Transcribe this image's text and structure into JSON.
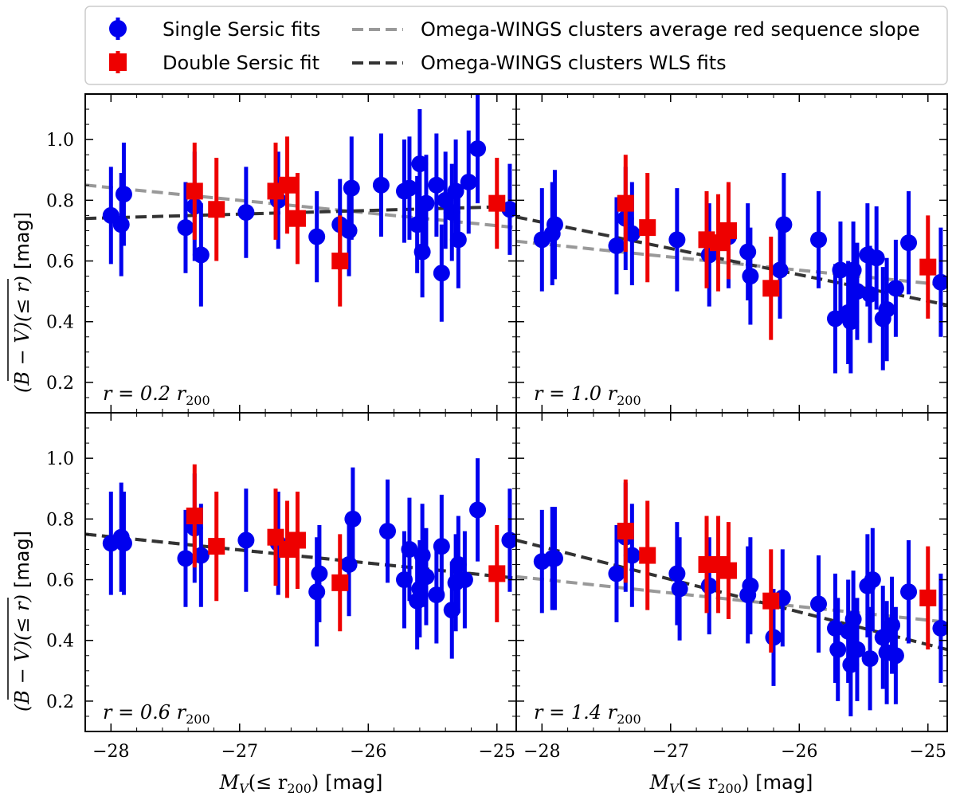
{
  "chart_data": {
    "type": "scatter",
    "legend": {
      "placement": "top",
      "entries": [
        {
          "key": "single",
          "label": "Single Sersic fits",
          "color": "#0000ee",
          "marker": "circle"
        },
        {
          "key": "double",
          "label": "Double Sersic fit",
          "color": "#ee0000",
          "marker": "square"
        },
        {
          "key": "avgslope",
          "label": "Omega-WINGS clusters average red sequence slope",
          "color": "#999999",
          "marker": "dashed"
        },
        {
          "key": "wls",
          "label": "Omega-WINGS clusters WLS fits",
          "color": "#333333",
          "marker": "dashed"
        }
      ]
    },
    "xlim": [
      -28.2,
      -24.85
    ],
    "ylim": [
      0.1,
      1.15
    ],
    "x_ticks": [
      -28,
      -27,
      -26,
      -25
    ],
    "y_ticks": [
      0.2,
      0.4,
      0.6,
      0.8,
      1.0
    ],
    "x_tick_labels": [
      "−28",
      "−27",
      "−26",
      "−25"
    ],
    "y_tick_labels": [
      "0.2",
      "0.4",
      "0.6",
      "0.8",
      "1.0"
    ],
    "xlabel_main": "M",
    "xlabel_sub": "V",
    "xlabel_paren": "(≤ r",
    "xlabel_paren_sub": "200",
    "xlabel_close": ")",
    "xlabel_unit": "[mag]",
    "ylabel_main": "(B − V)(≤ r)",
    "ylabel_unit": "[mag]",
    "panels": [
      {
        "label": "r = 0.2 r",
        "label_sub": "200",
        "avg_line": [
          [
            -28.2,
            0.85
          ],
          [
            -24.85,
            0.71
          ]
        ],
        "wls_line": [
          [
            -28.2,
            0.74
          ],
          [
            -24.85,
            0.78
          ]
        ],
        "single": [
          {
            "x": -28.0,
            "y": 0.75,
            "err": 0.16
          },
          {
            "x": -27.92,
            "y": 0.72,
            "err": 0.17
          },
          {
            "x": -27.9,
            "y": 0.82,
            "err": 0.17
          },
          {
            "x": -27.42,
            "y": 0.71,
            "err": 0.15
          },
          {
            "x": -27.35,
            "y": 0.78,
            "err": 0.18
          },
          {
            "x": -27.3,
            "y": 0.62,
            "err": 0.17
          },
          {
            "x": -26.95,
            "y": 0.76,
            "err": 0.15
          },
          {
            "x": -26.7,
            "y": 0.8,
            "err": 0.16
          },
          {
            "x": -26.4,
            "y": 0.68,
            "err": 0.15
          },
          {
            "x": -26.22,
            "y": 0.72,
            "err": 0.15
          },
          {
            "x": -26.15,
            "y": 0.7,
            "err": 0.15
          },
          {
            "x": -26.13,
            "y": 0.84,
            "err": 0.17
          },
          {
            "x": -25.9,
            "y": 0.85,
            "err": 0.17
          },
          {
            "x": -25.72,
            "y": 0.83,
            "err": 0.17
          },
          {
            "x": -25.68,
            "y": 0.84,
            "err": 0.17
          },
          {
            "x": -25.62,
            "y": 0.72,
            "err": 0.16
          },
          {
            "x": -25.6,
            "y": 0.92,
            "err": 0.18
          },
          {
            "x": -25.58,
            "y": 0.63,
            "err": 0.15
          },
          {
            "x": -25.55,
            "y": 0.79,
            "err": 0.16
          },
          {
            "x": -25.47,
            "y": 0.85,
            "err": 0.17
          },
          {
            "x": -25.43,
            "y": 0.56,
            "err": 0.16
          },
          {
            "x": -25.4,
            "y": 0.8,
            "err": 0.16
          },
          {
            "x": -25.35,
            "y": 0.76,
            "err": 0.16
          },
          {
            "x": -25.3,
            "y": 0.67,
            "err": 0.16
          },
          {
            "x": -25.32,
            "y": 0.83,
            "err": 0.17
          },
          {
            "x": -25.22,
            "y": 0.86,
            "err": 0.17
          },
          {
            "x": -25.15,
            "y": 0.97,
            "err": 0.18
          },
          {
            "x": -24.9,
            "y": 0.77,
            "err": 0.15
          }
        ],
        "double": [
          {
            "x": -27.35,
            "y": 0.83,
            "err": 0.16
          },
          {
            "x": -27.18,
            "y": 0.77,
            "err": 0.17
          },
          {
            "x": -26.72,
            "y": 0.83,
            "err": 0.16
          },
          {
            "x": -26.63,
            "y": 0.85,
            "err": 0.16
          },
          {
            "x": -26.55,
            "y": 0.74,
            "err": 0.15
          },
          {
            "x": -26.22,
            "y": 0.6,
            "err": 0.15
          },
          {
            "x": -25.0,
            "y": 0.79,
            "err": 0.15
          }
        ]
      },
      {
        "label": "r = 1.0 r",
        "label_sub": "200",
        "avg_line": [
          [
            -28.2,
            0.665
          ],
          [
            -24.85,
            0.52
          ]
        ],
        "wls_line": [
          [
            -28.2,
            0.745
          ],
          [
            -24.85,
            0.455
          ]
        ],
        "single": [
          {
            "x": -28.0,
            "y": 0.67,
            "err": 0.17
          },
          {
            "x": -27.92,
            "y": 0.69,
            "err": 0.17
          },
          {
            "x": -27.9,
            "y": 0.72,
            "err": 0.18
          },
          {
            "x": -27.42,
            "y": 0.65,
            "err": 0.16
          },
          {
            "x": -27.35,
            "y": 0.74,
            "err": 0.17
          },
          {
            "x": -27.3,
            "y": 0.69,
            "err": 0.17
          },
          {
            "x": -26.95,
            "y": 0.67,
            "err": 0.17
          },
          {
            "x": -26.7,
            "y": 0.62,
            "err": 0.17
          },
          {
            "x": -26.55,
            "y": 0.68,
            "err": 0.17
          },
          {
            "x": -26.4,
            "y": 0.63,
            "err": 0.16
          },
          {
            "x": -26.38,
            "y": 0.55,
            "err": 0.16
          },
          {
            "x": -26.15,
            "y": 0.57,
            "err": 0.16
          },
          {
            "x": -26.12,
            "y": 0.72,
            "err": 0.17
          },
          {
            "x": -25.85,
            "y": 0.67,
            "err": 0.16
          },
          {
            "x": -25.72,
            "y": 0.41,
            "err": 0.18
          },
          {
            "x": -25.68,
            "y": 0.57,
            "err": 0.16
          },
          {
            "x": -25.62,
            "y": 0.43,
            "err": 0.17
          },
          {
            "x": -25.6,
            "y": 0.4,
            "err": 0.17
          },
          {
            "x": -25.58,
            "y": 0.57,
            "err": 0.16
          },
          {
            "x": -25.55,
            "y": 0.5,
            "err": 0.16
          },
          {
            "x": -25.47,
            "y": 0.62,
            "err": 0.17
          },
          {
            "x": -25.45,
            "y": 0.49,
            "err": 0.16
          },
          {
            "x": -25.4,
            "y": 0.61,
            "err": 0.17
          },
          {
            "x": -25.35,
            "y": 0.41,
            "err": 0.17
          },
          {
            "x": -25.32,
            "y": 0.44,
            "err": 0.17
          },
          {
            "x": -25.25,
            "y": 0.51,
            "err": 0.16
          },
          {
            "x": -25.15,
            "y": 0.66,
            "err": 0.17
          },
          {
            "x": -24.9,
            "y": 0.53,
            "err": 0.18
          }
        ],
        "double": [
          {
            "x": -27.35,
            "y": 0.79,
            "err": 0.16
          },
          {
            "x": -27.18,
            "y": 0.71,
            "err": 0.18
          },
          {
            "x": -26.72,
            "y": 0.67,
            "err": 0.16
          },
          {
            "x": -26.63,
            "y": 0.66,
            "err": 0.16
          },
          {
            "x": -26.55,
            "y": 0.7,
            "err": 0.16
          },
          {
            "x": -26.22,
            "y": 0.51,
            "err": 0.17
          },
          {
            "x": -25.0,
            "y": 0.58,
            "err": 0.17
          }
        ]
      },
      {
        "label": "r = 0.6 r",
        "label_sub": "200",
        "avg_line": [
          [
            -28.2,
            0.75
          ],
          [
            -24.85,
            0.605
          ]
        ],
        "wls_line": [
          [
            -28.2,
            0.75
          ],
          [
            -24.85,
            0.605
          ]
        ],
        "single": [
          {
            "x": -28.0,
            "y": 0.72,
            "err": 0.17
          },
          {
            "x": -27.92,
            "y": 0.74,
            "err": 0.18
          },
          {
            "x": -27.9,
            "y": 0.72,
            "err": 0.17
          },
          {
            "x": -27.42,
            "y": 0.67,
            "err": 0.16
          },
          {
            "x": -27.35,
            "y": 0.77,
            "err": 0.18
          },
          {
            "x": -27.3,
            "y": 0.68,
            "err": 0.17
          },
          {
            "x": -26.95,
            "y": 0.73,
            "err": 0.17
          },
          {
            "x": -26.7,
            "y": 0.72,
            "err": 0.17
          },
          {
            "x": -26.4,
            "y": 0.56,
            "err": 0.18
          },
          {
            "x": -26.38,
            "y": 0.62,
            "err": 0.16
          },
          {
            "x": -26.15,
            "y": 0.65,
            "err": 0.17
          },
          {
            "x": -26.12,
            "y": 0.8,
            "err": 0.17
          },
          {
            "x": -25.85,
            "y": 0.76,
            "err": 0.17
          },
          {
            "x": -25.72,
            "y": 0.6,
            "err": 0.16
          },
          {
            "x": -25.68,
            "y": 0.7,
            "err": 0.17
          },
          {
            "x": -25.62,
            "y": 0.53,
            "err": 0.16
          },
          {
            "x": -25.6,
            "y": 0.57,
            "err": 0.16
          },
          {
            "x": -25.58,
            "y": 0.68,
            "err": 0.17
          },
          {
            "x": -25.55,
            "y": 0.61,
            "err": 0.16
          },
          {
            "x": -25.47,
            "y": 0.55,
            "err": 0.16
          },
          {
            "x": -25.43,
            "y": 0.71,
            "err": 0.17
          },
          {
            "x": -25.35,
            "y": 0.5,
            "err": 0.16
          },
          {
            "x": -25.32,
            "y": 0.59,
            "err": 0.16
          },
          {
            "x": -25.3,
            "y": 0.65,
            "err": 0.16
          },
          {
            "x": -25.25,
            "y": 0.6,
            "err": 0.16
          },
          {
            "x": -25.15,
            "y": 0.83,
            "err": 0.17
          },
          {
            "x": -24.9,
            "y": 0.73,
            "err": 0.17
          }
        ],
        "double": [
          {
            "x": -27.35,
            "y": 0.81,
            "err": 0.17
          },
          {
            "x": -27.18,
            "y": 0.71,
            "err": 0.18
          },
          {
            "x": -26.72,
            "y": 0.74,
            "err": 0.16
          },
          {
            "x": -26.63,
            "y": 0.7,
            "err": 0.16
          },
          {
            "x": -26.55,
            "y": 0.73,
            "err": 0.16
          },
          {
            "x": -26.22,
            "y": 0.59,
            "err": 0.16
          },
          {
            "x": -25.0,
            "y": 0.62,
            "err": 0.16
          }
        ]
      },
      {
        "label": "r = 1.4 r",
        "label_sub": "200",
        "avg_line": [
          [
            -28.2,
            0.61
          ],
          [
            -24.85,
            0.46
          ]
        ],
        "wls_line": [
          [
            -28.2,
            0.73
          ],
          [
            -24.85,
            0.37
          ]
        ],
        "single": [
          {
            "x": -28.0,
            "y": 0.66,
            "err": 0.17
          },
          {
            "x": -27.92,
            "y": 0.67,
            "err": 0.17
          },
          {
            "x": -27.9,
            "y": 0.67,
            "err": 0.17
          },
          {
            "x": -27.42,
            "y": 0.62,
            "err": 0.16
          },
          {
            "x": -27.35,
            "y": 0.74,
            "err": 0.18
          },
          {
            "x": -27.3,
            "y": 0.68,
            "err": 0.17
          },
          {
            "x": -26.95,
            "y": 0.62,
            "err": 0.17
          },
          {
            "x": -26.93,
            "y": 0.57,
            "err": 0.17
          },
          {
            "x": -26.7,
            "y": 0.58,
            "err": 0.16
          },
          {
            "x": -26.4,
            "y": 0.55,
            "err": 0.16
          },
          {
            "x": -26.38,
            "y": 0.58,
            "err": 0.16
          },
          {
            "x": -26.2,
            "y": 0.41,
            "err": 0.16
          },
          {
            "x": -26.13,
            "y": 0.54,
            "err": 0.16
          },
          {
            "x": -25.85,
            "y": 0.52,
            "err": 0.16
          },
          {
            "x": -25.72,
            "y": 0.44,
            "err": 0.18
          },
          {
            "x": -25.7,
            "y": 0.37,
            "err": 0.17
          },
          {
            "x": -25.62,
            "y": 0.43,
            "err": 0.17
          },
          {
            "x": -25.6,
            "y": 0.32,
            "err": 0.17
          },
          {
            "x": -25.58,
            "y": 0.47,
            "err": 0.16
          },
          {
            "x": -25.55,
            "y": 0.37,
            "err": 0.17
          },
          {
            "x": -25.47,
            "y": 0.58,
            "err": 0.17
          },
          {
            "x": -25.45,
            "y": 0.34,
            "err": 0.17
          },
          {
            "x": -25.43,
            "y": 0.6,
            "err": 0.17
          },
          {
            "x": -25.35,
            "y": 0.41,
            "err": 0.17
          },
          {
            "x": -25.32,
            "y": 0.36,
            "err": 0.17
          },
          {
            "x": -25.28,
            "y": 0.45,
            "err": 0.16
          },
          {
            "x": -25.25,
            "y": 0.35,
            "err": 0.16
          },
          {
            "x": -25.15,
            "y": 0.56,
            "err": 0.17
          },
          {
            "x": -24.9,
            "y": 0.44,
            "err": 0.18
          }
        ],
        "double": [
          {
            "x": -27.35,
            "y": 0.76,
            "err": 0.17
          },
          {
            "x": -27.18,
            "y": 0.68,
            "err": 0.18
          },
          {
            "x": -26.72,
            "y": 0.65,
            "err": 0.16
          },
          {
            "x": -26.63,
            "y": 0.65,
            "err": 0.16
          },
          {
            "x": -26.55,
            "y": 0.63,
            "err": 0.16
          },
          {
            "x": -26.22,
            "y": 0.53,
            "err": 0.17
          },
          {
            "x": -25.0,
            "y": 0.54,
            "err": 0.17
          }
        ]
      }
    ]
  }
}
